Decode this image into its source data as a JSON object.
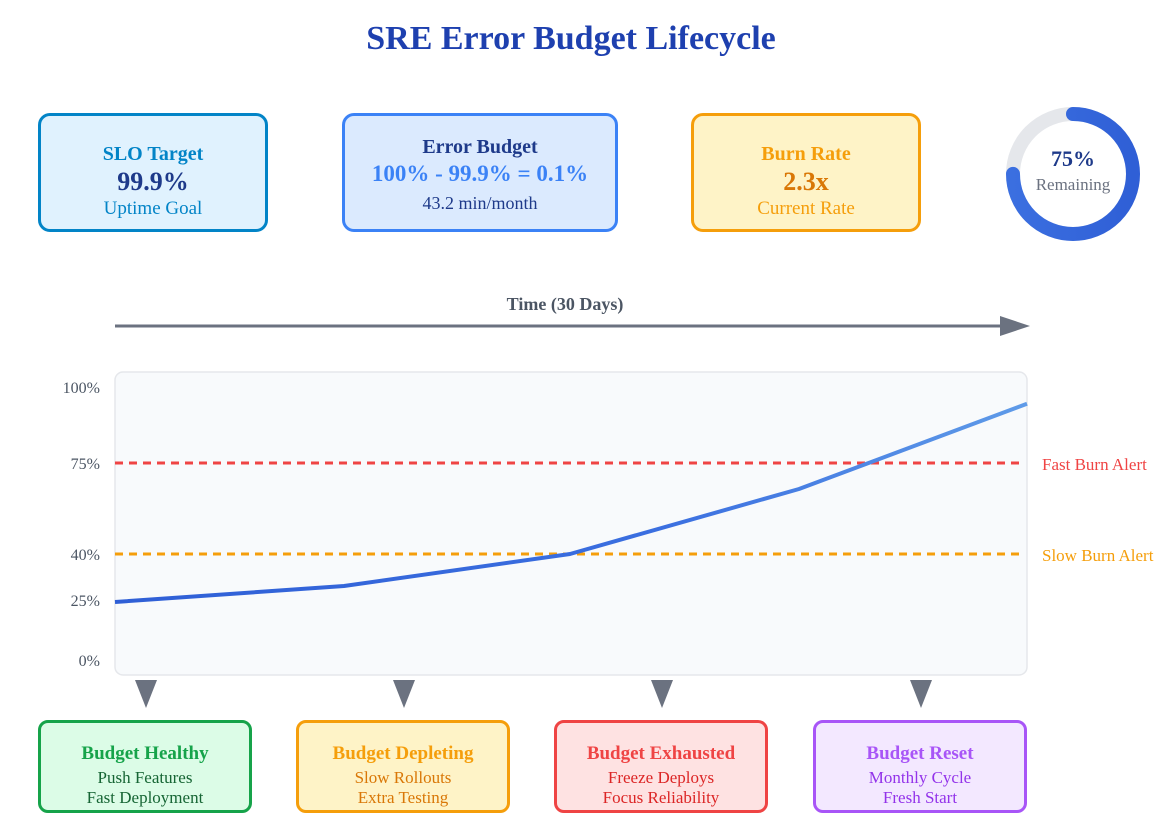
{
  "title": "SRE Error Budget Lifecycle",
  "cards": {
    "slo": {
      "label": "SLO Target",
      "value": "99.9%",
      "sub": "Uptime Goal"
    },
    "error_budget": {
      "label": "Error Budget",
      "value": "100% - 99.9% = 0.1%",
      "sub": "43.2 min/month"
    },
    "burn_rate": {
      "label": "Burn Rate",
      "value": "2.3x",
      "sub": "Current Rate"
    }
  },
  "gauge": {
    "percent_label": "75%",
    "label": "Remaining",
    "remaining_fraction": 0.75
  },
  "time_axis": {
    "label": "Time (30 Days)"
  },
  "chart_data": {
    "type": "line",
    "y_ticks": [
      "100%",
      "75%",
      "40%",
      "25%",
      "0%"
    ],
    "series_values": [
      25,
      30,
      40,
      65,
      95
    ],
    "thresholds": [
      {
        "label": "Fast Burn Alert",
        "value": 75,
        "color": "#ef4444"
      },
      {
        "label": "Slow Burn Alert",
        "value": 40,
        "color": "#f59e0b"
      }
    ]
  },
  "stages": [
    {
      "title": "Budget Healthy",
      "line1": "Push Features",
      "line2": "Fast Deployment"
    },
    {
      "title": "Budget Depleting",
      "line1": "Slow Rollouts",
      "line2": "Extra Testing"
    },
    {
      "title": "Budget Exhausted",
      "line1": "Freeze Deploys",
      "line2": "Focus Reliability"
    },
    {
      "title": "Budget Reset",
      "line1": "Monthly Cycle",
      "line2": "Fresh Start"
    }
  ]
}
